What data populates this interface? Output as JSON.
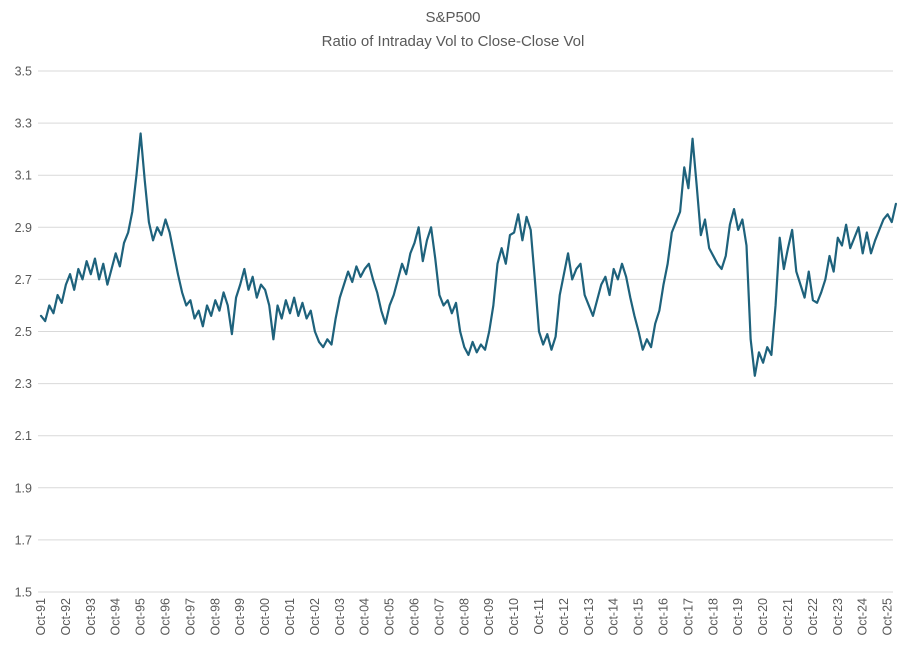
{
  "chart_data": {
    "type": "line",
    "title": "S&P500",
    "subtitle": "Ratio of Intraday Vol to Close-Close Vol",
    "legend": "none",
    "grid": "horizontal",
    "ylim": [
      1.5,
      3.5
    ],
    "y_ticks": [
      "3.5",
      "3.3",
      "3.1",
      "2.9",
      "2.7",
      "2.5",
      "2.3",
      "2.1",
      "1.9",
      "1.7",
      "1.5"
    ],
    "x_tick_labels": [
      "Oct-91",
      "Oct-92",
      "Oct-93",
      "Oct-94",
      "Oct-95",
      "Oct-96",
      "Oct-97",
      "Oct-98",
      "Oct-99",
      "Oct-00",
      "Oct-01",
      "Oct-02",
      "Oct-03",
      "Oct-04",
      "Oct-05",
      "Oct-06",
      "Oct-07",
      "Oct-08",
      "Oct-09",
      "Oct-10",
      "Oct-11",
      "Oct-12",
      "Oct-13",
      "Oct-14",
      "Oct-15",
      "Oct-16",
      "Oct-17",
      "Oct-18",
      "Oct-19",
      "Oct-20",
      "Oct-21",
      "Oct-22",
      "Oct-23",
      "Oct-24",
      "Oct-25"
    ],
    "colors": {
      "line": "#1e627c",
      "grid": "#d9d9d9",
      "tick_label": "#595959",
      "title": "#595959"
    },
    "series": [
      {
        "name": "Intraday vol / Close-Close vol ratio",
        "x_start": "Oct-1991",
        "x_step_months": 2,
        "values": [
          2.56,
          2.54,
          2.6,
          2.57,
          2.64,
          2.61,
          2.68,
          2.72,
          2.66,
          2.74,
          2.7,
          2.77,
          2.72,
          2.78,
          2.7,
          2.76,
          2.68,
          2.74,
          2.8,
          2.75,
          2.84,
          2.88,
          2.96,
          3.1,
          3.26,
          3.08,
          2.92,
          2.85,
          2.9,
          2.87,
          2.93,
          2.88,
          2.8,
          2.72,
          2.65,
          2.6,
          2.62,
          2.55,
          2.58,
          2.52,
          2.6,
          2.56,
          2.62,
          2.58,
          2.65,
          2.6,
          2.49,
          2.63,
          2.68,
          2.74,
          2.66,
          2.71,
          2.63,
          2.68,
          2.66,
          2.6,
          2.47,
          2.6,
          2.55,
          2.62,
          2.57,
          2.63,
          2.56,
          2.61,
          2.55,
          2.58,
          2.5,
          2.46,
          2.44,
          2.47,
          2.45,
          2.55,
          2.63,
          2.68,
          2.73,
          2.69,
          2.75,
          2.71,
          2.74,
          2.76,
          2.7,
          2.65,
          2.58,
          2.53,
          2.6,
          2.64,
          2.7,
          2.76,
          2.72,
          2.8,
          2.84,
          2.9,
          2.77,
          2.85,
          2.9,
          2.78,
          2.64,
          2.6,
          2.62,
          2.57,
          2.61,
          2.5,
          2.44,
          2.41,
          2.46,
          2.42,
          2.45,
          2.43,
          2.5,
          2.6,
          2.76,
          2.82,
          2.76,
          2.87,
          2.88,
          2.95,
          2.85,
          2.94,
          2.89,
          2.7,
          2.5,
          2.45,
          2.49,
          2.43,
          2.48,
          2.64,
          2.72,
          2.8,
          2.7,
          2.74,
          2.76,
          2.64,
          2.6,
          2.56,
          2.62,
          2.68,
          2.71,
          2.64,
          2.74,
          2.7,
          2.76,
          2.71,
          2.63,
          2.56,
          2.5,
          2.43,
          2.47,
          2.44,
          2.53,
          2.58,
          2.68,
          2.76,
          2.88,
          2.92,
          2.96,
          3.13,
          3.05,
          3.24,
          3.06,
          2.87,
          2.93,
          2.82,
          2.79,
          2.76,
          2.74,
          2.79,
          2.91,
          2.97,
          2.89,
          2.93,
          2.83,
          2.47,
          2.33,
          2.42,
          2.38,
          2.44,
          2.41,
          2.6,
          2.86,
          2.74,
          2.82,
          2.89,
          2.73,
          2.68,
          2.63,
          2.73,
          2.62,
          2.61,
          2.65,
          2.7,
          2.79,
          2.73,
          2.86,
          2.83,
          2.91,
          2.82,
          2.86,
          2.9,
          2.8,
          2.88,
          2.8,
          2.85,
          2.89,
          2.93,
          2.95,
          2.92,
          2.99
        ]
      }
    ]
  }
}
